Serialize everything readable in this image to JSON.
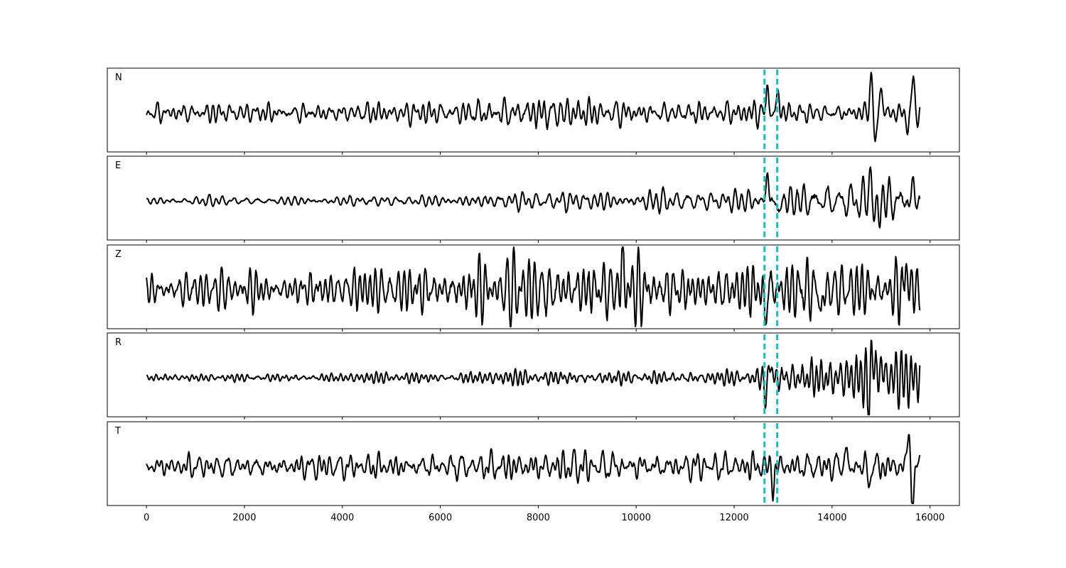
{
  "chart_data": {
    "type": "line",
    "xlim": [
      -800,
      16600
    ],
    "xticks": [
      0,
      2000,
      4000,
      6000,
      8000,
      10000,
      12000,
      14000,
      16000
    ],
    "xtick_labels": [
      "0",
      "2000",
      "4000",
      "6000",
      "8000",
      "10000",
      "12000",
      "14000",
      "16000"
    ],
    "x_range": [
      0,
      15800
    ],
    "picks": [
      12620,
      12880
    ],
    "pick_color": "#17bfbf",
    "trace_color": "#000000",
    "grid": false,
    "panels": [
      {
        "label": "N",
        "noise": [
          [
            0,
            0.18
          ],
          [
            2000,
            0.18
          ],
          [
            4000,
            0.18
          ],
          [
            6000,
            0.22
          ],
          [
            7500,
            0.3
          ],
          [
            8500,
            0.3
          ],
          [
            10000,
            0.22
          ],
          [
            11500,
            0.2
          ],
          [
            12500,
            0.22
          ],
          [
            12600,
            0.22
          ],
          [
            14000,
            0.18
          ],
          [
            15800,
            0.2
          ]
        ],
        "spikes": [
          {
            "x": 12680,
            "amp": 0.75,
            "w": 45
          },
          {
            "x": 12900,
            "amp": 0.55,
            "w": 50
          },
          {
            "x": 14800,
            "amp": 1.0,
            "w": 60
          },
          {
            "x": 14870,
            "amp": -0.85,
            "w": 55
          },
          {
            "x": 15000,
            "amp": 0.55,
            "w": 60
          },
          {
            "x": 15650,
            "amp": 0.85,
            "w": 55
          },
          {
            "x": 15550,
            "amp": -0.4,
            "w": 50
          }
        ]
      },
      {
        "label": "E",
        "noise": [
          [
            0,
            0.08
          ],
          [
            6000,
            0.1
          ],
          [
            6500,
            0.18
          ],
          [
            8000,
            0.15
          ],
          [
            9000,
            0.22
          ],
          [
            12500,
            0.2
          ],
          [
            12600,
            0.2
          ],
          [
            13000,
            0.35
          ],
          [
            14000,
            0.4
          ],
          [
            15800,
            0.45
          ]
        ],
        "spikes": [
          {
            "x": 12680,
            "amp": 0.75,
            "w": 45
          },
          {
            "x": 12900,
            "amp": -0.35,
            "w": 50
          },
          {
            "x": 14800,
            "amp": 0.9,
            "w": 60
          },
          {
            "x": 14880,
            "amp": -0.9,
            "w": 55
          },
          {
            "x": 15650,
            "amp": 0.35,
            "w": 55
          }
        ]
      },
      {
        "label": "Z",
        "noise": [
          [
            0,
            0.35
          ],
          [
            3000,
            0.35
          ],
          [
            6000,
            0.55
          ],
          [
            7500,
            0.6
          ],
          [
            9500,
            0.6
          ],
          [
            11000,
            0.5
          ],
          [
            12500,
            0.55
          ],
          [
            13500,
            0.6
          ],
          [
            15000,
            0.55
          ],
          [
            15800,
            0.55
          ]
        ],
        "spikes": [
          {
            "x": 9720,
            "amp": 0.95,
            "w": 45
          },
          {
            "x": 12630,
            "amp": -0.75,
            "w": 45
          },
          {
            "x": 13780,
            "amp": -0.8,
            "w": 45
          },
          {
            "x": 15520,
            "amp": 0.55,
            "w": 50
          }
        ]
      },
      {
        "label": "R",
        "noise": [
          [
            0,
            0.08
          ],
          [
            6000,
            0.1
          ],
          [
            8000,
            0.15
          ],
          [
            11000,
            0.15
          ],
          [
            12500,
            0.18
          ],
          [
            12600,
            0.2
          ],
          [
            13000,
            0.35
          ],
          [
            14000,
            0.4
          ],
          [
            15800,
            0.45
          ]
        ],
        "spikes": [
          {
            "x": 12720,
            "amp": 0.5,
            "w": 50
          },
          {
            "x": 12650,
            "amp": -0.7,
            "w": 45
          },
          {
            "x": 14810,
            "amp": 0.95,
            "w": 60
          },
          {
            "x": 14760,
            "amp": -1.0,
            "w": 55
          },
          {
            "x": 15000,
            "amp": 0.35,
            "w": 60
          }
        ]
      },
      {
        "label": "T",
        "noise": [
          [
            0,
            0.2
          ],
          [
            6000,
            0.25
          ],
          [
            7800,
            0.3
          ],
          [
            9500,
            0.3
          ],
          [
            11500,
            0.25
          ],
          [
            12500,
            0.25
          ],
          [
            14000,
            0.3
          ],
          [
            15800,
            0.3
          ]
        ],
        "spikes": [
          {
            "x": 12800,
            "amp": -0.55,
            "w": 45
          },
          {
            "x": 14250,
            "amp": 0.5,
            "w": 45
          },
          {
            "x": 15560,
            "amp": 0.85,
            "w": 55
          },
          {
            "x": 15640,
            "amp": -1.0,
            "w": 50
          },
          {
            "x": 14750,
            "amp": -0.4,
            "w": 50
          }
        ]
      }
    ]
  }
}
